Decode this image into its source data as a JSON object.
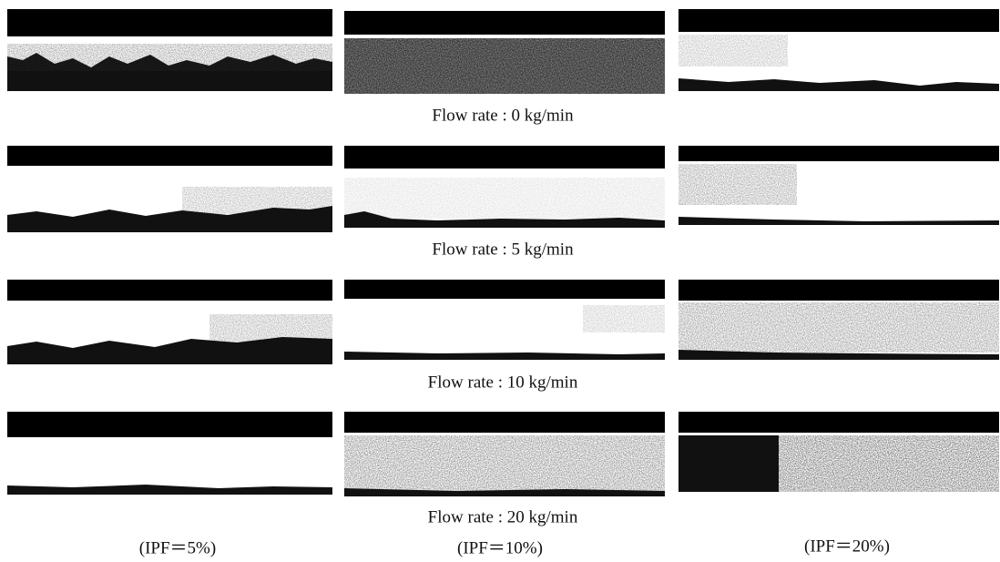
{
  "rows": [
    {
      "label": "Flow rate : 0 kg/min"
    },
    {
      "label": "Flow rate : 5 kg/min"
    },
    {
      "label": "Flow rate : 10 kg/min"
    },
    {
      "label": "Flow rate : 20 kg/min"
    }
  ],
  "columns": [
    {
      "label": "(IPF＝5%)"
    },
    {
      "label": "(IPF＝10%)"
    },
    {
      "label": "(IPF＝20%)"
    }
  ]
}
